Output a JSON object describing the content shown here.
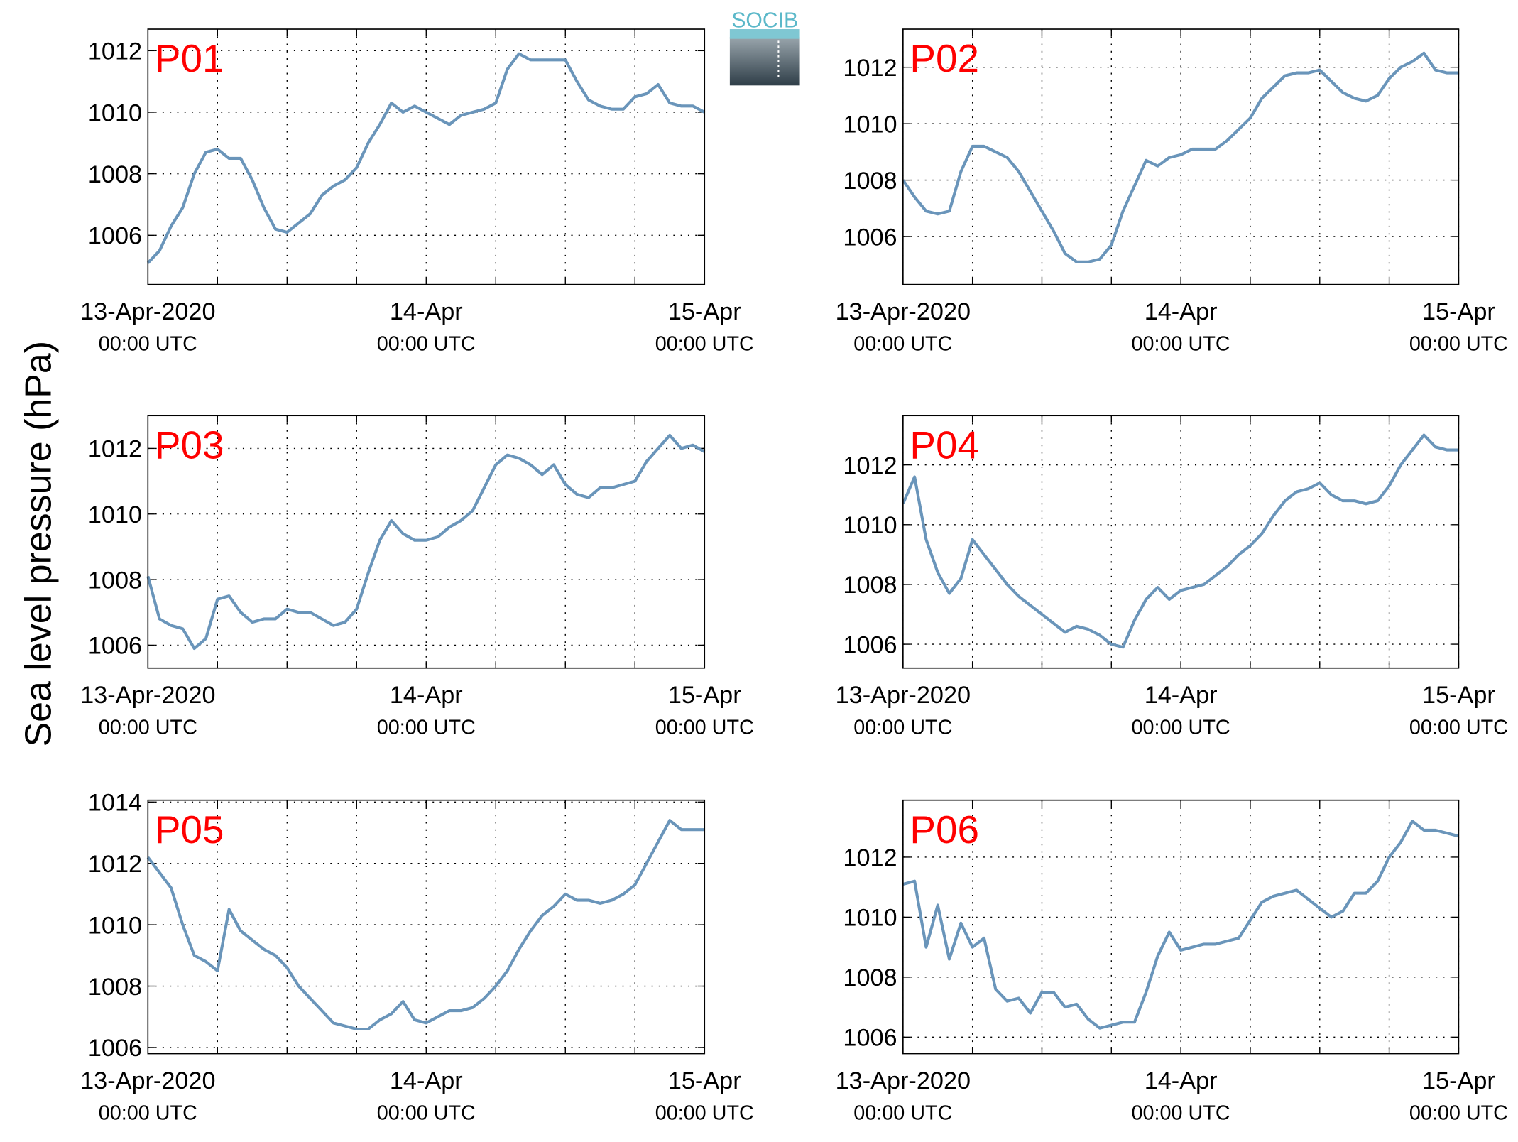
{
  "ylabel": "Sea level pressure (hPa)",
  "logo": "SOCIB",
  "chart_data": [
    {
      "type": "line",
      "title": "P01",
      "color": "#6a95ba",
      "grid": true,
      "x": [
        0,
        1,
        2,
        3,
        4,
        5,
        6,
        7,
        8,
        9,
        10,
        11,
        12,
        13,
        14,
        15,
        16,
        17,
        18,
        19,
        20,
        21,
        22,
        23,
        24,
        25,
        26,
        27,
        28,
        29,
        30,
        31,
        32,
        33,
        34,
        35,
        36,
        37,
        38,
        39,
        40,
        41,
        42,
        43,
        44,
        45,
        46,
        47,
        48
      ],
      "values": [
        1005.1,
        1005.5,
        1006.3,
        1006.9,
        1008.0,
        1008.7,
        1008.8,
        1008.5,
        1008.5,
        1007.8,
        1006.9,
        1006.2,
        1006.1,
        1006.4,
        1006.7,
        1007.3,
        1007.6,
        1007.8,
        1008.2,
        1009.0,
        1009.6,
        1010.3,
        1010.0,
        1010.2,
        1010.0,
        1009.8,
        1009.6,
        1009.9,
        1010.0,
        1010.1,
        1010.3,
        1011.4,
        1011.9,
        1011.7,
        1011.7,
        1011.7,
        1011.7,
        1011.0,
        1010.4,
        1010.2,
        1010.1,
        1010.1,
        1010.5,
        1010.6,
        1010.9,
        1010.3,
        1010.2,
        1010.2,
        1010.0
      ],
      "xlim": [
        0,
        48
      ],
      "xticks": [
        {
          "value": 0,
          "label": [
            "13-Apr-2020",
            "00:00 UTC"
          ]
        },
        {
          "value": 24,
          "label": [
            "14-Apr",
            "00:00 UTC"
          ]
        },
        {
          "value": 48,
          "label": [
            "15-Apr",
            "00:00 UTC"
          ]
        }
      ],
      "xminorticks": [
        6,
        12,
        18,
        30,
        36,
        42
      ],
      "ylim": [
        1004.4,
        1012.7
      ],
      "yticks": [
        1006,
        1008,
        1010,
        1012
      ]
    },
    {
      "type": "line",
      "title": "P02",
      "color": "#6a95ba",
      "grid": true,
      "x": [
        0,
        1,
        2,
        3,
        4,
        5,
        6,
        7,
        8,
        9,
        10,
        11,
        12,
        13,
        14,
        15,
        16,
        17,
        18,
        19,
        20,
        21,
        22,
        23,
        24,
        25,
        26,
        27,
        28,
        29,
        30,
        31,
        32,
        33,
        34,
        35,
        36,
        37,
        38,
        39,
        40,
        41,
        42,
        43,
        44,
        45,
        46,
        47,
        48
      ],
      "values": [
        1008.0,
        1007.4,
        1006.9,
        1006.8,
        1006.9,
        1008.3,
        1009.2,
        1009.2,
        1009.0,
        1008.8,
        1008.3,
        1007.6,
        1006.9,
        1006.2,
        1005.4,
        1005.1,
        1005.1,
        1005.2,
        1005.7,
        1006.9,
        1007.8,
        1008.7,
        1008.5,
        1008.8,
        1008.9,
        1009.1,
        1009.1,
        1009.1,
        1009.4,
        1009.8,
        1010.2,
        1010.9,
        1011.3,
        1011.7,
        1011.8,
        1011.8,
        1011.9,
        1011.5,
        1011.1,
        1010.9,
        1010.8,
        1011.0,
        1011.6,
        1012.0,
        1012.2,
        1012.5,
        1011.9,
        1011.8,
        1011.8
      ],
      "xlim": [
        0,
        48
      ],
      "xticks": [
        {
          "value": 0,
          "label": [
            "13-Apr-2020",
            "00:00 UTC"
          ]
        },
        {
          "value": 24,
          "label": [
            "14-Apr",
            "00:00 UTC"
          ]
        },
        {
          "value": 48,
          "label": [
            "15-Apr",
            "00:00 UTC"
          ]
        }
      ],
      "xminorticks": [
        6,
        12,
        18,
        30,
        36,
        42
      ],
      "ylim": [
        1004.3,
        1013.35
      ],
      "yticks": [
        1006,
        1008,
        1010,
        1012
      ]
    },
    {
      "type": "line",
      "title": "P03",
      "color": "#6a95ba",
      "grid": true,
      "x": [
        0,
        1,
        2,
        3,
        4,
        5,
        6,
        7,
        8,
        9,
        10,
        11,
        12,
        13,
        14,
        15,
        16,
        17,
        18,
        19,
        20,
        21,
        22,
        23,
        24,
        25,
        26,
        27,
        28,
        29,
        30,
        31,
        32,
        33,
        34,
        35,
        36,
        37,
        38,
        39,
        40,
        41,
        42,
        43,
        44,
        45,
        46,
        47,
        48
      ],
      "values": [
        1008.1,
        1006.8,
        1006.6,
        1006.5,
        1005.9,
        1006.2,
        1007.4,
        1007.5,
        1007.0,
        1006.7,
        1006.8,
        1006.8,
        1007.1,
        1007.0,
        1007.0,
        1006.8,
        1006.6,
        1006.7,
        1007.1,
        1008.2,
        1009.2,
        1009.8,
        1009.4,
        1009.2,
        1009.2,
        1009.3,
        1009.6,
        1009.8,
        1010.1,
        1010.8,
        1011.5,
        1011.8,
        1011.7,
        1011.5,
        1011.2,
        1011.5,
        1010.9,
        1010.6,
        1010.5,
        1010.8,
        1010.8,
        1010.9,
        1011.0,
        1011.6,
        1012.0,
        1012.4,
        1012.0,
        1012.1,
        1011.9
      ],
      "xlim": [
        0,
        48
      ],
      "xticks": [
        {
          "value": 0,
          "label": [
            "13-Apr-2020",
            "00:00 UTC"
          ]
        },
        {
          "value": 24,
          "label": [
            "14-Apr",
            "00:00 UTC"
          ]
        },
        {
          "value": 48,
          "label": [
            "15-Apr",
            "00:00 UTC"
          ]
        }
      ],
      "xminorticks": [
        6,
        12,
        18,
        30,
        36,
        42
      ],
      "ylim": [
        1005.3,
        1013.0
      ],
      "yticks": [
        1006,
        1008,
        1010,
        1012
      ]
    },
    {
      "type": "line",
      "title": "P04",
      "color": "#6a95ba",
      "grid": true,
      "x": [
        0,
        1,
        2,
        3,
        4,
        5,
        6,
        7,
        8,
        9,
        10,
        11,
        12,
        13,
        14,
        15,
        16,
        17,
        18,
        19,
        20,
        21,
        22,
        23,
        24,
        25,
        26,
        27,
        28,
        29,
        30,
        31,
        32,
        33,
        34,
        35,
        36,
        37,
        38,
        39,
        40,
        41,
        42,
        43,
        44,
        45,
        46,
        47,
        48
      ],
      "values": [
        1010.7,
        1011.6,
        1009.5,
        1008.4,
        1007.7,
        1008.2,
        1009.5,
        1009.0,
        1008.5,
        1008.0,
        1007.6,
        1007.3,
        1007.0,
        1006.7,
        1006.4,
        1006.6,
        1006.5,
        1006.3,
        1006.0,
        1005.9,
        1006.8,
        1007.5,
        1007.9,
        1007.5,
        1007.8,
        1007.9,
        1008.0,
        1008.3,
        1008.6,
        1009.0,
        1009.3,
        1009.7,
        1010.3,
        1010.8,
        1011.1,
        1011.2,
        1011.4,
        1011.0,
        1010.8,
        1010.8,
        1010.7,
        1010.8,
        1011.3,
        1012.0,
        1012.5,
        1013.0,
        1012.6,
        1012.5,
        1012.5
      ],
      "xlim": [
        0,
        48
      ],
      "xticks": [
        {
          "value": 0,
          "label": [
            "13-Apr-2020",
            "00:00 UTC"
          ]
        },
        {
          "value": 24,
          "label": [
            "14-Apr",
            "00:00 UTC"
          ]
        },
        {
          "value": 48,
          "label": [
            "15-Apr",
            "00:00 UTC"
          ]
        }
      ],
      "xminorticks": [
        6,
        12,
        18,
        30,
        36,
        42
      ],
      "ylim": [
        1005.2,
        1013.65
      ],
      "yticks": [
        1006,
        1008,
        1010,
        1012
      ]
    },
    {
      "type": "line",
      "title": "P05",
      "color": "#6a95ba",
      "grid": true,
      "x": [
        0,
        1,
        2,
        3,
        4,
        5,
        6,
        7,
        8,
        9,
        10,
        11,
        12,
        13,
        14,
        15,
        16,
        17,
        18,
        19,
        20,
        21,
        22,
        23,
        24,
        25,
        26,
        27,
        28,
        29,
        30,
        31,
        32,
        33,
        34,
        35,
        36,
        37,
        38,
        39,
        40,
        41,
        42,
        43,
        44,
        45,
        46,
        47,
        48
      ],
      "values": [
        1012.2,
        1011.7,
        1011.2,
        1010.0,
        1009.0,
        1008.8,
        1008.5,
        1010.5,
        1009.8,
        1009.5,
        1009.2,
        1009.0,
        1008.6,
        1008.0,
        1007.6,
        1007.2,
        1006.8,
        1006.7,
        1006.6,
        1006.6,
        1006.9,
        1007.1,
        1007.5,
        1006.9,
        1006.8,
        1007.0,
        1007.2,
        1007.2,
        1007.3,
        1007.6,
        1008.0,
        1008.5,
        1009.2,
        1009.8,
        1010.3,
        1010.6,
        1011.0,
        1010.8,
        1010.8,
        1010.7,
        1010.8,
        1011.0,
        1011.3,
        1012.0,
        1012.7,
        1013.4,
        1013.1,
        1013.1,
        1013.1
      ],
      "xlim": [
        0,
        48
      ],
      "xticks": [
        {
          "value": 0,
          "label": [
            "13-Apr-2020",
            "00:00 UTC"
          ]
        },
        {
          "value": 24,
          "label": [
            "14-Apr",
            "00:00 UTC"
          ]
        },
        {
          "value": 48,
          "label": [
            "15-Apr",
            "00:00 UTC"
          ]
        }
      ],
      "xminorticks": [
        6,
        12,
        18,
        30,
        36,
        42
      ],
      "ylim": [
        1005.8,
        1014.06
      ],
      "yticks": [
        1006,
        1008,
        1010,
        1012,
        1014
      ]
    },
    {
      "type": "line",
      "title": "P06",
      "color": "#6a95ba",
      "grid": true,
      "x": [
        0,
        1,
        2,
        3,
        4,
        5,
        6,
        7,
        8,
        9,
        10,
        11,
        12,
        13,
        14,
        15,
        16,
        17,
        18,
        19,
        20,
        21,
        22,
        23,
        24,
        25,
        26,
        27,
        28,
        29,
        30,
        31,
        32,
        33,
        34,
        35,
        36,
        37,
        38,
        39,
        40,
        41,
        42,
        43,
        44,
        45,
        46,
        47,
        48
      ],
      "values": [
        1011.1,
        1011.2,
        1009.0,
        1010.4,
        1008.6,
        1009.8,
        1009.0,
        1009.3,
        1007.6,
        1007.2,
        1007.3,
        1006.8,
        1007.5,
        1007.5,
        1007.0,
        1007.1,
        1006.6,
        1006.3,
        1006.4,
        1006.5,
        1006.5,
        1007.5,
        1008.7,
        1009.5,
        1008.9,
        1009.0,
        1009.1,
        1009.1,
        1009.2,
        1009.3,
        1009.9,
        1010.5,
        1010.7,
        1010.8,
        1010.9,
        1010.6,
        1010.3,
        1010.0,
        1010.2,
        1010.8,
        1010.8,
        1011.2,
        1012.0,
        1012.5,
        1013.2,
        1012.9,
        1012.9,
        1012.8,
        1012.7
      ],
      "xlim": [
        0,
        48
      ],
      "xticks": [
        {
          "value": 0,
          "label": [
            "13-Apr-2020",
            "00:00 UTC"
          ]
        },
        {
          "value": 24,
          "label": [
            "14-Apr",
            "00:00 UTC"
          ]
        },
        {
          "value": 48,
          "label": [
            "15-Apr",
            "00:00 UTC"
          ]
        }
      ],
      "xminorticks": [
        6,
        12,
        18,
        30,
        36,
        42
      ],
      "ylim": [
        1005.45,
        1013.9
      ],
      "yticks": [
        1006,
        1008,
        1010,
        1012
      ]
    }
  ]
}
